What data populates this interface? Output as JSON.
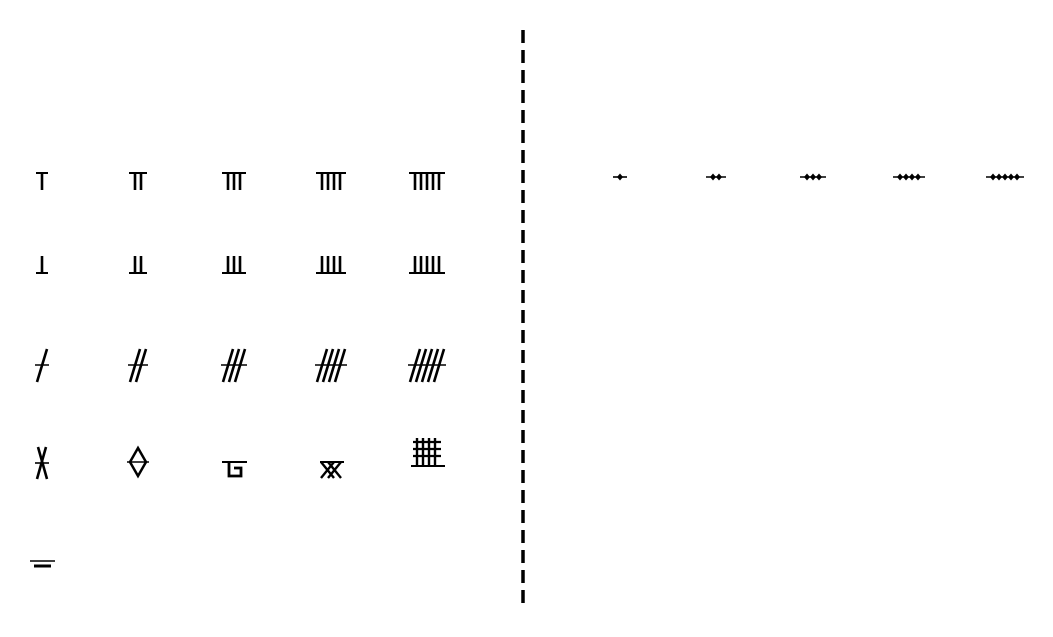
{
  "colors": {
    "ink": "#000000",
    "background": "#ffffff"
  },
  "divider": {
    "style": "dashed"
  },
  "left_panel": {
    "rows": [
      {
        "name": "top-bar-ticks",
        "counts": [
          1,
          2,
          3,
          4,
          5
        ]
      },
      {
        "name": "bottom-bar-ticks",
        "counts": [
          1,
          2,
          3,
          4,
          5
        ]
      },
      {
        "name": "slash-ticks",
        "counts": [
          1,
          2,
          3,
          4,
          5
        ]
      },
      {
        "name": "special-marks",
        "items": [
          "cross-mark",
          "diamond-mark",
          "hook-mark",
          "double-x-mark",
          "grid-mark"
        ]
      },
      {
        "name": "underline-mark",
        "items": [
          "double-dash-mark"
        ]
      }
    ]
  },
  "right_panel": {
    "diamond_counts": [
      1,
      2,
      3,
      4,
      5
    ]
  }
}
